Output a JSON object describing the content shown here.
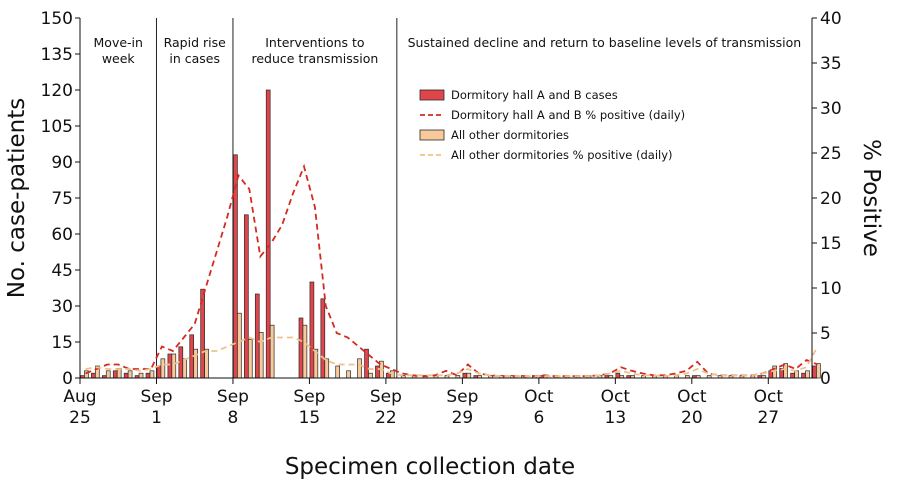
{
  "chart_data": {
    "type": "bar",
    "xlabel": "Specimen collection date",
    "ylabel": "No. case-patients",
    "y2label": "% Positive",
    "ylim": [
      0,
      150
    ],
    "y2lim": [
      0,
      40
    ],
    "yticks": [
      0,
      15,
      30,
      45,
      60,
      75,
      90,
      105,
      120,
      135,
      150
    ],
    "y2ticks": [
      0,
      5,
      10,
      15,
      20,
      25,
      30,
      35,
      40
    ],
    "xlim": [
      0,
      67
    ],
    "xticks": [
      {
        "day": 0,
        "line1": "Aug",
        "line2": "25"
      },
      {
        "day": 7,
        "line1": "Sep",
        "line2": "1"
      },
      {
        "day": 14,
        "line1": "Sep",
        "line2": "8"
      },
      {
        "day": 21,
        "line1": "Sep",
        "line2": "15"
      },
      {
        "day": 28,
        "line1": "Sep",
        "line2": "22"
      },
      {
        "day": 35,
        "line1": "Sep",
        "line2": "29"
      },
      {
        "day": 42,
        "line1": "Oct",
        "line2": "6"
      },
      {
        "day": 49,
        "line1": "Oct",
        "line2": "13"
      },
      {
        "day": 56,
        "line1": "Oct",
        "line2": "20"
      },
      {
        "day": 63,
        "line1": "Oct",
        "line2": "27"
      }
    ],
    "periods": [
      {
        "label": [
          "Move-in",
          "week"
        ],
        "start": 0,
        "end": 7
      },
      {
        "label": [
          "Rapid rise",
          "in cases"
        ],
        "start": 7,
        "end": 14
      },
      {
        "label": [
          "Interventions to",
          "reduce transmission"
        ],
        "start": 14,
        "end": 29
      },
      {
        "label": [
          "Sustained decline and return to baseline levels of transmission"
        ],
        "start": 29,
        "end": 67
      }
    ],
    "series": [
      {
        "name": "Dormitory hall A and B cases",
        "kind": "bar",
        "color": "#e0454b",
        "values": [
          1,
          2,
          1,
          3,
          2,
          1,
          2,
          5,
          10,
          13,
          18,
          37,
          0,
          0,
          93,
          68,
          35,
          120,
          0,
          0,
          25,
          40,
          33,
          0,
          0,
          0,
          12,
          5,
          2,
          0,
          0,
          0,
          0,
          0,
          0,
          2,
          1,
          0,
          0,
          0,
          0,
          0,
          1,
          0,
          0,
          0,
          0,
          0,
          1,
          2,
          1,
          0,
          0,
          0,
          0,
          0,
          1,
          0,
          0,
          0,
          0,
          0,
          1,
          3,
          4,
          2,
          2,
          5
        ]
      },
      {
        "name": "Dormitory hall A and B % positive (daily)",
        "kind": "line",
        "style": "dashed",
        "color": "#d42a20",
        "values": [
          0.5,
          1.0,
          1.5,
          1.5,
          1.0,
          1.0,
          1.0,
          3.5,
          3.0,
          4.5,
          6.0,
          10.0,
          14.0,
          18.0,
          22.5,
          21.0,
          13.5,
          15.0,
          17.0,
          20.5,
          23.5,
          19.0,
          8.0,
          5.0,
          4.5,
          3.5,
          2.5,
          1.5,
          1.0,
          0.5,
          0.3,
          0.2,
          0.3,
          0.8,
          0.3,
          1.5,
          0.5,
          0.3,
          0.2,
          0.2,
          0.2,
          0.2,
          0.3,
          0.2,
          0.2,
          0.2,
          0.2,
          0.3,
          0.5,
          1.2,
          0.8,
          0.5,
          0.3,
          0.3,
          0.5,
          0.8,
          1.8,
          0.5,
          0.3,
          0.3,
          0.3,
          0.3,
          0.5,
          1.0,
          1.5,
          1.0,
          2.0,
          1.5
        ]
      },
      {
        "name": "All other dormitories",
        "kind": "bar",
        "color": "#f7c99b",
        "values": [
          3,
          5,
          3,
          4,
          3,
          2,
          3,
          8,
          10,
          8,
          12,
          12,
          0,
          0,
          27,
          16,
          19,
          22,
          0,
          0,
          22,
          12,
          8,
          5,
          3,
          8,
          2,
          7,
          3,
          1,
          1,
          1,
          1,
          1,
          1,
          2,
          1,
          1,
          1,
          1,
          1,
          1,
          1,
          1,
          1,
          1,
          1,
          1,
          1,
          1,
          1,
          1,
          1,
          1,
          1,
          1,
          1,
          1,
          1,
          1,
          1,
          1,
          1,
          5,
          6,
          3,
          3,
          6
        ]
      },
      {
        "name": "All other dormitories % positive (daily)",
        "kind": "line",
        "style": "dashed",
        "color": "#efc28a",
        "values": [
          1.0,
          1.2,
          1.0,
          1.0,
          1.0,
          0.8,
          1.0,
          1.5,
          1.5,
          2.0,
          2.5,
          3.0,
          3.0,
          3.5,
          4.0,
          4.5,
          4.0,
          4.5,
          4.5,
          4.5,
          4.0,
          3.0,
          2.0,
          1.5,
          1.5,
          1.5,
          1.0,
          1.0,
          0.5,
          0.3,
          0.3,
          0.3,
          0.3,
          0.3,
          0.5,
          1.0,
          0.5,
          0.3,
          0.2,
          0.2,
          0.2,
          0.2,
          0.2,
          0.2,
          0.2,
          0.2,
          0.2,
          0.3,
          0.5,
          0.8,
          0.5,
          0.3,
          0.3,
          0.2,
          0.3,
          0.5,
          1.0,
          0.5,
          0.3,
          0.3,
          0.3,
          0.3,
          0.5,
          0.8,
          1.0,
          0.8,
          1.2,
          3.5
        ]
      }
    ],
    "legend_position": "upper-center"
  }
}
